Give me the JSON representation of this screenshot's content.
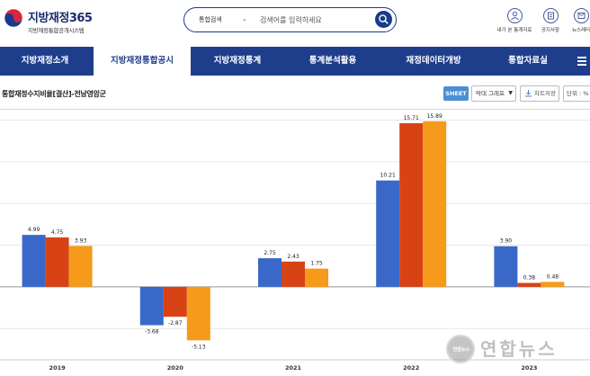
{
  "header": {
    "logo_title": "지방재정365",
    "logo_subtitle": "지방재정통합공개시스템",
    "search": {
      "category": "통합검색",
      "placeholder": "검색어를 입력하세요"
    },
    "utils": [
      {
        "label": "내가 본 통계자료",
        "icon": "person-icon"
      },
      {
        "label": "공지사항",
        "icon": "notice-icon"
      },
      {
        "label": "뉴스레터",
        "icon": "newsletter-icon"
      }
    ]
  },
  "nav": {
    "items": [
      {
        "label": "지방재정소개",
        "active": false
      },
      {
        "label": "지방재정통합공시",
        "active": true
      },
      {
        "label": "지방재정통계",
        "active": false
      },
      {
        "label": "통계분석활용",
        "active": false
      },
      {
        "label": "재정데이터개방",
        "active": false
      },
      {
        "label": "통합자료실",
        "active": false
      }
    ],
    "menu_icon": "hamburger-icon"
  },
  "toolbar": {
    "title": "통합재정수지비율[결산]-전남영암군",
    "sheet_label": "SHEET",
    "chart_type": "막대 그래프",
    "save_label": "차트저장",
    "unit_label": "단위 : %"
  },
  "chart_data": {
    "type": "bar",
    "categories": [
      "2019",
      "2020",
      "2021",
      "2022",
      "2023"
    ],
    "series": [
      {
        "color": "#3a68c8",
        "values": [
          4.99,
          -3.68,
          2.75,
          10.21,
          3.9
        ]
      },
      {
        "color": "#d84315",
        "values": [
          4.75,
          -2.87,
          2.43,
          15.71,
          0.38
        ]
      },
      {
        "color": "#f59a1b",
        "values": [
          3.93,
          -5.13,
          1.75,
          15.89,
          0.48
        ]
      }
    ],
    "value_labels": [
      [
        "4.99",
        "4.75",
        "3.93"
      ],
      [
        "-3.68",
        "-2.87",
        "-5.13"
      ],
      [
        "2.75",
        "2.43",
        "1.75"
      ],
      [
        "10.21",
        "15.71",
        "15.89"
      ],
      [
        "3.90",
        "0.38",
        "0.48"
      ]
    ],
    "ylim": [
      -7,
      17
    ],
    "grid": true,
    "legend": "none"
  },
  "watermark": {
    "circle_text": "연합뉴스",
    "text": "연합뉴스"
  }
}
